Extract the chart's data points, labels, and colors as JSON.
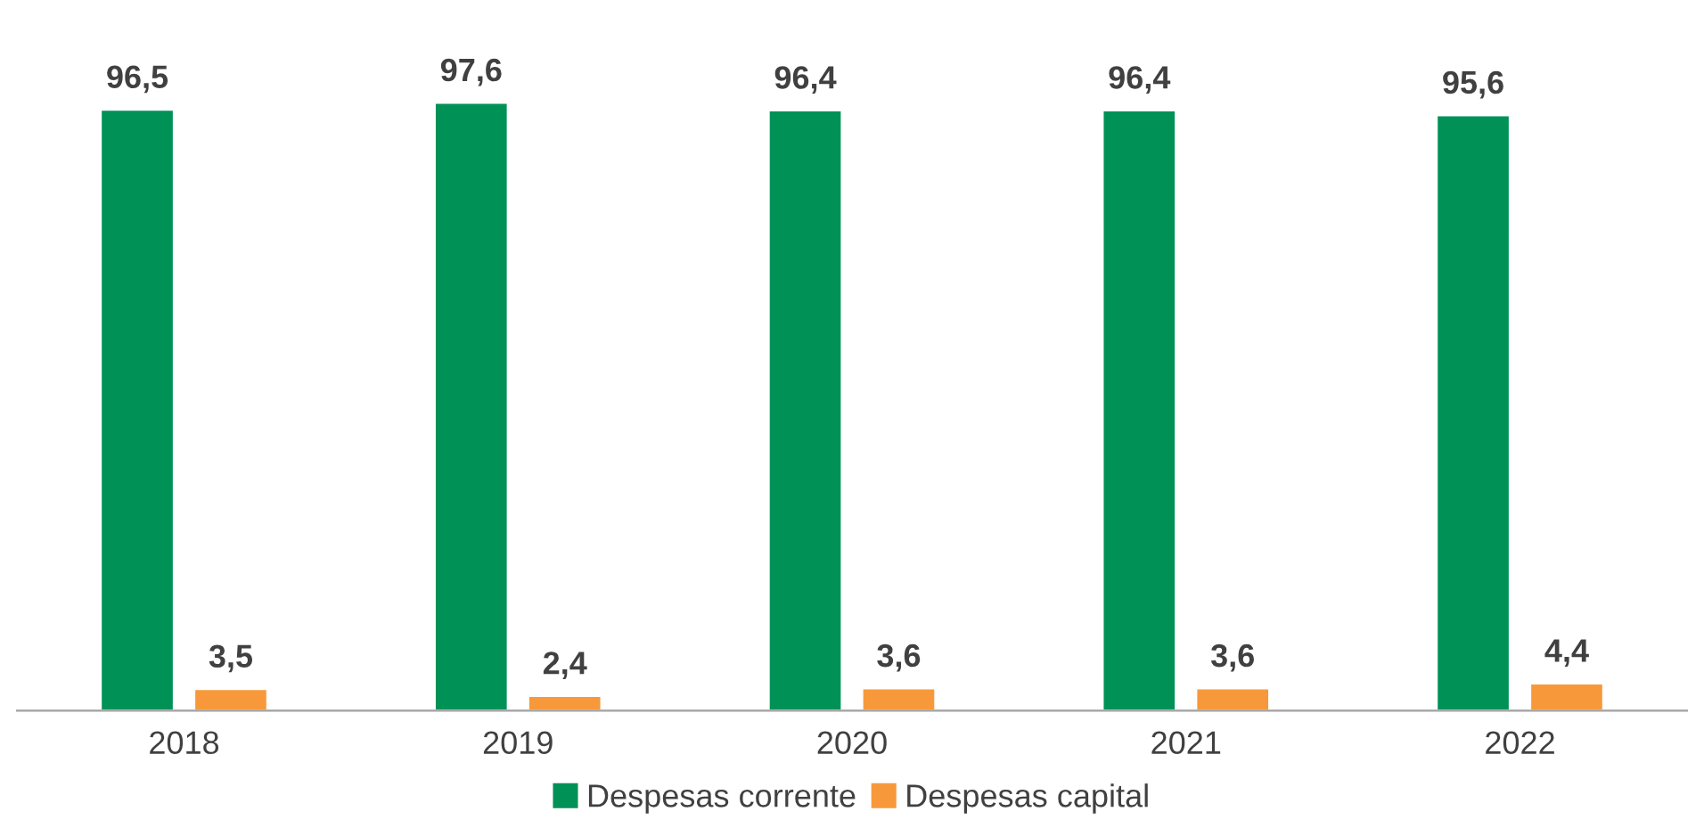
{
  "chart_data": {
    "type": "bar",
    "categories": [
      "2018",
      "2019",
      "2020",
      "2021",
      "2022"
    ],
    "series": [
      {
        "name": "Despesas corrente",
        "color": "#009157",
        "values": [
          96.5,
          97.6,
          96.4,
          96.4,
          95.6
        ],
        "value_labels": [
          "96,5",
          "97,6",
          "96,4",
          "96,4",
          "95,6"
        ]
      },
      {
        "name": "Despesas capital",
        "color": "#f7993a",
        "values": [
          3.5,
          2.4,
          3.6,
          3.6,
          4.4
        ],
        "value_labels": [
          "3,5",
          "2,4",
          "3,6",
          "3,6",
          "4,4"
        ]
      }
    ],
    "legend": "bottom",
    "grid": false
  }
}
